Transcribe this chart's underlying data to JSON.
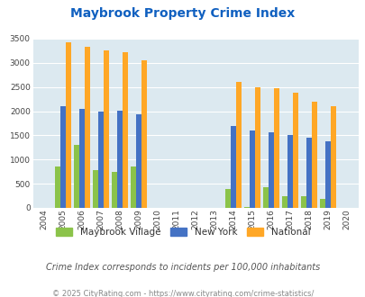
{
  "title": "Maybrook Property Crime Index",
  "title_color": "#1060c0",
  "subtitle": "Crime Index corresponds to incidents per 100,000 inhabitants",
  "footer": "© 2025 CityRating.com - https://www.cityrating.com/crime-statistics/",
  "years": [
    2004,
    2005,
    2006,
    2007,
    2008,
    2009,
    2010,
    2011,
    2012,
    2013,
    2014,
    2015,
    2016,
    2017,
    2018,
    2019,
    2020
  ],
  "maybrook": [
    0,
    850,
    1300,
    775,
    750,
    850,
    0,
    0,
    0,
    0,
    400,
    10,
    420,
    250,
    250,
    190,
    0
  ],
  "new_york": [
    0,
    2100,
    2050,
    1990,
    2010,
    1940,
    0,
    0,
    0,
    0,
    1700,
    1600,
    1560,
    1500,
    1460,
    1380,
    0
  ],
  "national": [
    0,
    3420,
    3330,
    3250,
    3210,
    3050,
    0,
    0,
    0,
    0,
    2600,
    2490,
    2470,
    2380,
    2200,
    2100,
    0
  ],
  "bar_width": 0.28,
  "ylim": [
    0,
    3500
  ],
  "yticks": [
    0,
    500,
    1000,
    1500,
    2000,
    2500,
    3000,
    3500
  ],
  "color_maybrook": "#8bc34a",
  "color_newyork": "#4472c4",
  "color_national": "#ffa726",
  "bg_color": "#dce9f0",
  "grid_color": "#ffffff",
  "legend_label_maybrook": "Maybrook Village",
  "legend_label_newyork": "New York",
  "legend_label_national": "National",
  "subtitle_color": "#555555",
  "footer_color": "#888888"
}
